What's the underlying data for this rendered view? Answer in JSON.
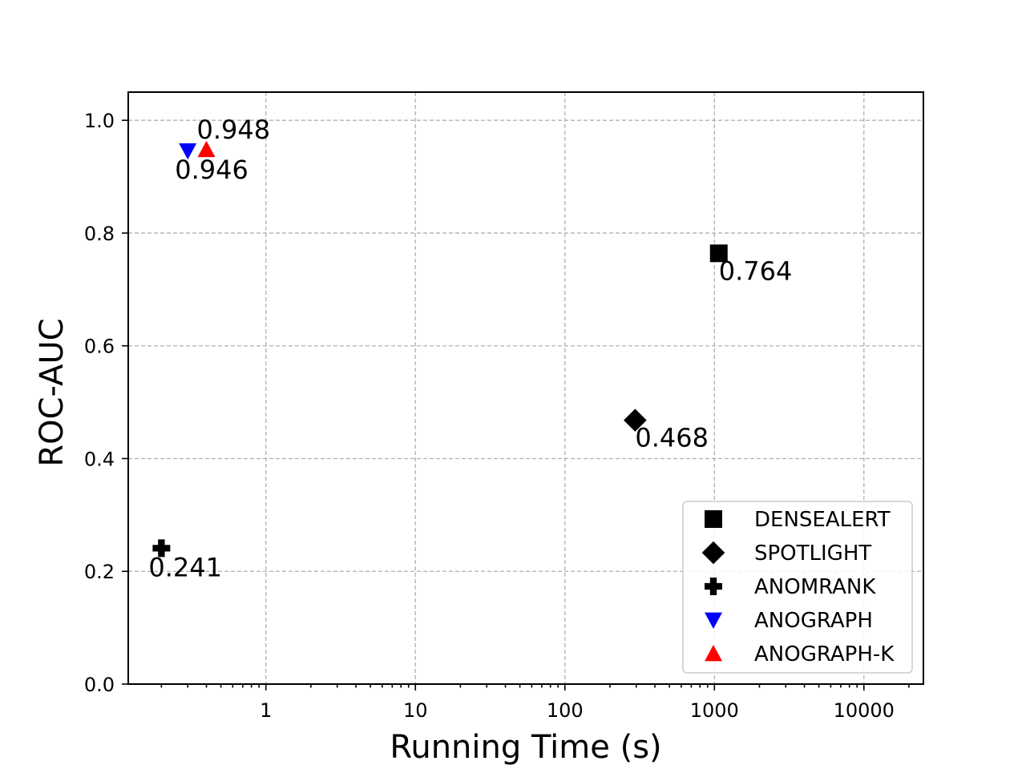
{
  "chart_data": {
    "type": "scatter",
    "title": "",
    "xlabel": "Running Time (s)",
    "ylabel": "ROC-AUC",
    "xscale": "log",
    "xlim": [
      0.12,
      25000
    ],
    "ylim": [
      0.0,
      1.05
    ],
    "grid": true,
    "legend_position": "lower-right",
    "x_ticks": [
      {
        "value": 1,
        "label": "1"
      },
      {
        "value": 10,
        "label": "10"
      },
      {
        "value": 100,
        "label": "100"
      },
      {
        "value": 1000,
        "label": "1000"
      },
      {
        "value": 10000,
        "label": "10000"
      }
    ],
    "y_ticks": [
      {
        "value": 0.0,
        "label": "0.0"
      },
      {
        "value": 0.2,
        "label": "0.2"
      },
      {
        "value": 0.4,
        "label": "0.4"
      },
      {
        "value": 0.6,
        "label": "0.6"
      },
      {
        "value": 0.8,
        "label": "0.8"
      },
      {
        "value": 1.0,
        "label": "1.0"
      }
    ],
    "series": [
      {
        "name": "DENSEALERT",
        "marker": "square",
        "color": "#000000",
        "x": 1070,
        "y": 0.764,
        "label": "0.764",
        "label_anchor": "below-right"
      },
      {
        "name": "SPOTLIGHT",
        "marker": "diamond",
        "color": "#000000",
        "x": 295,
        "y": 0.468,
        "label": "0.468",
        "label_anchor": "below-right"
      },
      {
        "name": "ANOMRANK",
        "marker": "plus",
        "color": "#000000",
        "x": 0.2,
        "y": 0.241,
        "label": "0.241",
        "label_anchor": "below-left"
      },
      {
        "name": "ANOGRAPH",
        "marker": "triangle-down",
        "color": "#0000ff",
        "x": 0.3,
        "y": 0.946,
        "label": "0.946",
        "label_anchor": "below-left"
      },
      {
        "name": "ANOGRAPH-K",
        "marker": "triangle-up",
        "color": "#ff0000",
        "x": 0.4,
        "y": 0.948,
        "label": "0.948",
        "label_anchor": "above-left"
      }
    ]
  }
}
